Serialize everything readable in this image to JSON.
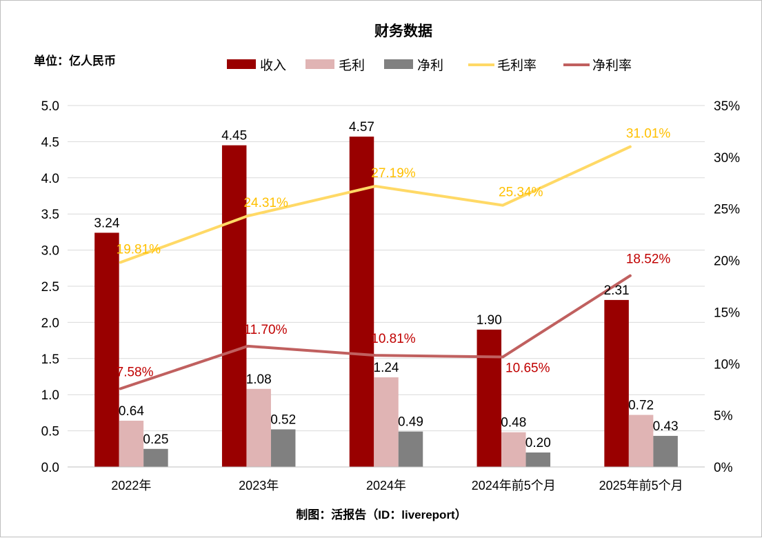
{
  "chart_data": {
    "type": "bar",
    "title": "财务数据",
    "unit_label": "单位：亿人民币",
    "source": "制图：活报告（ID：livereport）",
    "categories": [
      "2022年",
      "2023年",
      "2024年",
      "2024年前5个月",
      "2025年前5个月"
    ],
    "bar_series": [
      {
        "name": "收入",
        "color": "#990000",
        "values": [
          3.24,
          4.45,
          4.57,
          1.9,
          2.31
        ],
        "labels": [
          "3.24",
          "4.45",
          "4.57",
          "1.90",
          "2.31"
        ]
      },
      {
        "name": "毛利",
        "color": "#e0b4b4",
        "values": [
          0.64,
          1.08,
          1.24,
          0.48,
          0.72
        ],
        "labels": [
          "0.64",
          "1.08",
          "1.24",
          "0.48",
          "0.72"
        ]
      },
      {
        "name": "净利",
        "color": "#808080",
        "values": [
          0.25,
          0.52,
          0.49,
          0.2,
          0.43
        ],
        "labels": [
          "0.25",
          "0.52",
          "0.49",
          "0.20",
          "0.43"
        ]
      }
    ],
    "line_series": [
      {
        "name": "毛利率",
        "color": "#ffd966",
        "label_color": "#ffc000",
        "values": [
          19.81,
          24.31,
          27.19,
          25.34,
          31.01
        ],
        "labels": [
          "19.81%",
          "24.31%",
          "27.19%",
          "25.34%",
          "31.01%"
        ]
      },
      {
        "name": "净利率",
        "color": "#c0605f",
        "label_color": "#c00000",
        "values": [
          7.58,
          11.7,
          10.81,
          10.65,
          18.52
        ],
        "labels": [
          "7.58%",
          "11.70%",
          "10.81%",
          "10.65%",
          "18.52%"
        ]
      }
    ],
    "y_left": {
      "min": 0,
      "max": 5,
      "step": 0.5,
      "ticks": [
        "0.0",
        "0.5",
        "1.0",
        "1.5",
        "2.0",
        "2.5",
        "3.0",
        "3.5",
        "4.0",
        "4.5",
        "5.0"
      ]
    },
    "y_right": {
      "min": 0,
      "max": 35,
      "step": 5,
      "ticks": [
        "0%",
        "5%",
        "10%",
        "15%",
        "20%",
        "25%",
        "30%",
        "35%"
      ]
    },
    "grid": true,
    "legend_position": "top"
  }
}
